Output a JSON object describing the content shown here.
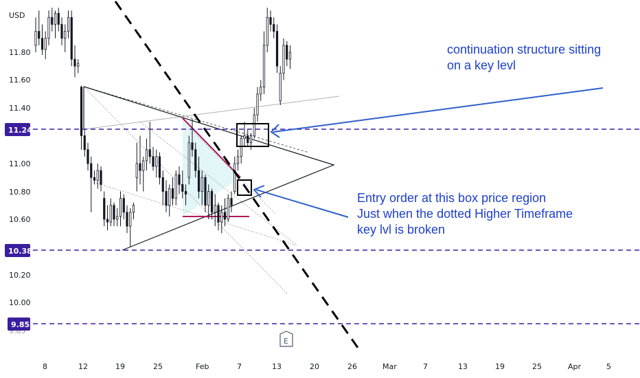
{
  "chart_data": {
    "type": "candlestick",
    "currency": "USD",
    "y_ticks": [
      "11.80",
      "11.60",
      "11.40",
      "11.00",
      "10.80",
      "10.60",
      "10.20",
      "10.00",
      "9.85"
    ],
    "x_ticks": [
      "8",
      "12",
      "19",
      "25",
      "Feb",
      "7",
      "13",
      "20",
      "26",
      "Mar",
      "7",
      "13",
      "19",
      "25",
      "Apr",
      "5"
    ],
    "ylim": [
      9.65,
      12.15
    ],
    "price_levels": [
      {
        "label": "11.24",
        "value": 11.24,
        "color": "#3a1e9e"
      },
      {
        "label": "10.38",
        "value": 10.38,
        "color": "#3a1e9e"
      },
      {
        "label": "9.85",
        "value": 9.85,
        "color": "#3a1e9e"
      }
    ],
    "annotations": [
      {
        "name": "continuation",
        "lines": [
          "continuation structure sitting",
          "on a key levl"
        ]
      },
      {
        "name": "entry",
        "lines": [
          "Entry order at this box price region",
          "Just when the dotted Higher Timeframe",
          "key lvl is broken"
        ]
      }
    ],
    "earnings_marker": "E",
    "candles": [
      {
        "o": 11.85,
        "h": 12.05,
        "l": 11.8,
        "c": 11.95
      },
      {
        "o": 11.95,
        "h": 12.1,
        "l": 11.85,
        "c": 11.9
      },
      {
        "o": 11.9,
        "h": 12.0,
        "l": 11.78,
        "c": 11.82
      },
      {
        "o": 11.82,
        "h": 11.95,
        "l": 11.75,
        "c": 11.9
      },
      {
        "o": 11.9,
        "h": 12.1,
        "l": 11.85,
        "c": 12.05
      },
      {
        "o": 12.05,
        "h": 12.12,
        "l": 11.95,
        "c": 12.0
      },
      {
        "o": 12.0,
        "h": 12.1,
        "l": 11.9,
        "c": 12.08
      },
      {
        "o": 12.08,
        "h": 12.12,
        "l": 11.95,
        "c": 12.0
      },
      {
        "o": 12.0,
        "h": 12.05,
        "l": 11.85,
        "c": 11.9
      },
      {
        "o": 11.9,
        "h": 12.0,
        "l": 11.8,
        "c": 11.95
      },
      {
        "o": 11.95,
        "h": 12.1,
        "l": 11.9,
        "c": 12.05
      },
      {
        "o": 12.05,
        "h": 12.1,
        "l": 11.7,
        "c": 11.75
      },
      {
        "o": 11.75,
        "h": 11.85,
        "l": 11.62,
        "c": 11.7
      },
      {
        "o": 11.7,
        "h": 11.75,
        "l": 11.65,
        "c": 11.72
      },
      {
        "o": 11.55,
        "h": 11.56,
        "l": 11.1,
        "c": 11.2
      },
      {
        "o": 11.2,
        "h": 11.25,
        "l": 11.05,
        "c": 11.1
      },
      {
        "o": 11.1,
        "h": 11.15,
        "l": 10.95,
        "c": 11.0
      },
      {
        "o": 11.0,
        "h": 11.05,
        "l": 10.65,
        "c": 10.9
      },
      {
        "o": 10.9,
        "h": 10.95,
        "l": 10.85,
        "c": 10.88
      },
      {
        "o": 10.88,
        "h": 11.0,
        "l": 10.82,
        "c": 10.95
      },
      {
        "o": 10.95,
        "h": 10.98,
        "l": 10.8,
        "c": 10.85
      },
      {
        "o": 10.75,
        "h": 10.8,
        "l": 10.55,
        "c": 10.6
      },
      {
        "o": 10.6,
        "h": 10.7,
        "l": 10.52,
        "c": 10.58
      },
      {
        "o": 10.58,
        "h": 10.75,
        "l": 10.55,
        "c": 10.7
      },
      {
        "o": 10.7,
        "h": 10.72,
        "l": 10.55,
        "c": 10.6
      },
      {
        "o": 10.6,
        "h": 10.68,
        "l": 10.55,
        "c": 10.62
      },
      {
        "o": 10.62,
        "h": 10.8,
        "l": 10.55,
        "c": 10.75
      },
      {
        "o": 10.75,
        "h": 10.78,
        "l": 10.6,
        "c": 10.65
      },
      {
        "o": 10.65,
        "h": 10.7,
        "l": 10.5,
        "c": 10.55
      },
      {
        "o": 10.55,
        "h": 10.68,
        "l": 10.4,
        "c": 10.65
      },
      {
        "o": 10.65,
        "h": 10.72,
        "l": 10.6,
        "c": 10.7
      },
      {
        "o": 10.9,
        "h": 11.15,
        "l": 10.8,
        "c": 11.0
      },
      {
        "o": 11.0,
        "h": 11.2,
        "l": 10.85,
        "c": 10.95
      },
      {
        "o": 10.95,
        "h": 11.05,
        "l": 10.8,
        "c": 11.02
      },
      {
        "o": 11.02,
        "h": 11.18,
        "l": 10.95,
        "c": 11.1
      },
      {
        "o": 11.1,
        "h": 11.3,
        "l": 11.0,
        "c": 11.05
      },
      {
        "o": 11.05,
        "h": 11.12,
        "l": 10.95,
        "c": 10.98
      },
      {
        "o": 10.98,
        "h": 11.1,
        "l": 10.9,
        "c": 11.05
      },
      {
        "o": 11.05,
        "h": 11.08,
        "l": 10.85,
        "c": 10.9
      },
      {
        "o": 10.9,
        "h": 10.95,
        "l": 10.7,
        "c": 10.8
      },
      {
        "o": 10.8,
        "h": 10.88,
        "l": 10.65,
        "c": 10.7
      },
      {
        "o": 10.7,
        "h": 10.85,
        "l": 10.62,
        "c": 10.82
      },
      {
        "o": 10.82,
        "h": 10.9,
        "l": 10.7,
        "c": 10.75
      },
      {
        "o": 10.75,
        "h": 10.95,
        "l": 10.7,
        "c": 10.92
      },
      {
        "o": 10.92,
        "h": 10.98,
        "l": 10.78,
        "c": 10.85
      },
      {
        "o": 10.85,
        "h": 10.95,
        "l": 10.75,
        "c": 10.8
      },
      {
        "o": 10.8,
        "h": 10.85,
        "l": 10.7,
        "c": 10.78
      },
      {
        "o": 10.9,
        "h": 11.2,
        "l": 10.85,
        "c": 11.15
      },
      {
        "o": 11.15,
        "h": 11.32,
        "l": 11.05,
        "c": 11.1
      },
      {
        "o": 11.1,
        "h": 11.15,
        "l": 10.9,
        "c": 10.95
      },
      {
        "o": 10.95,
        "h": 11.05,
        "l": 10.75,
        "c": 10.8
      },
      {
        "o": 10.8,
        "h": 10.95,
        "l": 10.7,
        "c": 10.9
      },
      {
        "o": 10.9,
        "h": 10.92,
        "l": 10.65,
        "c": 10.7
      },
      {
        "o": 10.7,
        "h": 10.85,
        "l": 10.6,
        "c": 10.8
      },
      {
        "o": 10.8,
        "h": 10.82,
        "l": 10.6,
        "c": 10.65
      },
      {
        "o": 10.65,
        "h": 10.78,
        "l": 10.55,
        "c": 10.7
      },
      {
        "o": 10.7,
        "h": 10.72,
        "l": 10.52,
        "c": 10.58
      },
      {
        "o": 10.58,
        "h": 10.7,
        "l": 10.5,
        "c": 10.65
      },
      {
        "o": 10.65,
        "h": 10.75,
        "l": 10.55,
        "c": 10.6
      },
      {
        "o": 10.6,
        "h": 10.78,
        "l": 10.58,
        "c": 10.75
      },
      {
        "o": 10.75,
        "h": 10.8,
        "l": 10.65,
        "c": 10.7
      },
      {
        "o": 10.8,
        "h": 11.05,
        "l": 10.78,
        "c": 11.0
      },
      {
        "o": 11.0,
        "h": 11.1,
        "l": 10.95,
        "c": 11.05
      },
      {
        "o": 11.05,
        "h": 11.2,
        "l": 11.0,
        "c": 11.18
      },
      {
        "o": 11.18,
        "h": 11.3,
        "l": 11.12,
        "c": 11.2
      },
      {
        "o": 11.2,
        "h": 11.25,
        "l": 11.12,
        "c": 11.15
      },
      {
        "o": 11.15,
        "h": 11.22,
        "l": 11.1,
        "c": 11.2
      },
      {
        "o": 11.2,
        "h": 11.4,
        "l": 11.18,
        "c": 11.35
      },
      {
        "o": 11.35,
        "h": 11.55,
        "l": 11.3,
        "c": 11.5
      },
      {
        "o": 11.5,
        "h": 11.6,
        "l": 11.45,
        "c": 11.55
      },
      {
        "o": 11.55,
        "h": 11.95,
        "l": 11.5,
        "c": 11.85
      },
      {
        "o": 11.85,
        "h": 12.12,
        "l": 11.8,
        "c": 12.05
      },
      {
        "o": 12.05,
        "h": 12.1,
        "l": 11.95,
        "c": 12.0
      },
      {
        "o": 12.0,
        "h": 12.05,
        "l": 11.9,
        "c": 11.95
      },
      {
        "o": 11.95,
        "h": 12.0,
        "l": 11.65,
        "c": 11.7
      },
      {
        "o": 11.45,
        "h": 11.7,
        "l": 11.42,
        "c": 11.65
      },
      {
        "o": 11.65,
        "h": 11.9,
        "l": 11.6,
        "c": 11.85
      },
      {
        "o": 11.85,
        "h": 11.88,
        "l": 11.7,
        "c": 11.75
      },
      {
        "o": 11.75,
        "h": 11.85,
        "l": 11.68,
        "c": 11.8
      }
    ]
  }
}
